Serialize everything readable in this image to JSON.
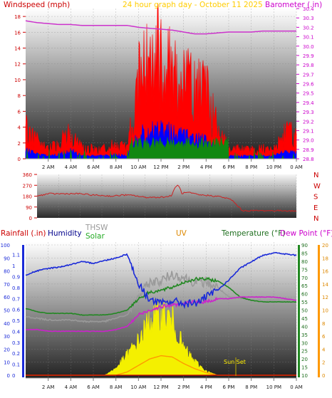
{
  "header": {
    "title": "24 hour graph day - October 11 2025",
    "left_axis_label": "Windspeed (mph)",
    "right_axis_label": "Barometer (.in)"
  },
  "colors": {
    "wind": "#ff0000",
    "wind_avg": "#0000ff",
    "wind_green": "#118811",
    "barometer": "#cc33cc",
    "direction": "#cc2222",
    "rain": "#0000ff",
    "humidity": "#1a2ad8",
    "thsw": "#9a9a9a",
    "solar": "#f4f000",
    "uv": "#ff9900",
    "temperature": "#228822",
    "dewpoint": "#cc22cc",
    "title": "#ffcc00"
  },
  "time_labels": [
    "2 AM",
    "4 AM",
    "6 AM",
    "8 AM",
    "10 AM",
    "12 PM",
    "2 PM",
    "4 PM",
    "6 PM",
    "8 PM",
    "10 PM",
    "0 AM"
  ],
  "direction_panel": {
    "ticks": [
      "360",
      "270",
      "180",
      "90",
      "0"
    ],
    "compass": [
      "N",
      "W",
      "S",
      "E",
      "N"
    ]
  },
  "bottom_panel": {
    "labels": {
      "rainfall": "Rainfall (.in)",
      "humidity": "Humidity",
      "thsw": "THSW",
      "solar": "Solar",
      "uv": "UV",
      "temperature": "Temperature (°F)",
      "dewpoint": "Dew Point (°F)",
      "sunset": "Sun Set"
    },
    "humidity_ticks": [
      "100",
      "90",
      "80",
      "70",
      "60",
      "50",
      "40",
      "30",
      "20",
      "10",
      "0"
    ],
    "rain_ticks": [
      "1.1",
      "1",
      "0.9",
      "0.8",
      "0.7",
      "0.6",
      "0.5",
      "0.4",
      "0.3",
      "0.2",
      "0.1",
      "0"
    ],
    "temp_ticks": [
      "90",
      "85",
      "80",
      "75",
      "70",
      "65",
      "60",
      "55",
      "50",
      "45",
      "40",
      "35",
      "30",
      "25",
      "20",
      "15",
      "10"
    ],
    "uv_ticks": [
      "20",
      "18",
      "16",
      "14",
      "12",
      "10",
      "8",
      "6",
      "4",
      "2",
      "0"
    ]
  },
  "chart_data": [
    {
      "type": "line",
      "x": [
        0,
        1,
        2,
        3,
        4,
        5,
        6,
        7,
        8,
        9,
        10,
        11,
        12,
        13,
        14,
        15,
        16,
        17,
        18,
        19,
        20,
        21,
        22,
        23,
        24
      ],
      "series": [
        {
          "name": "Windspeed (mph)",
          "values": [
            3,
            2,
            1,
            1.5,
            3,
            1,
            1,
            1,
            1.5,
            1,
            8,
            10,
            11,
            10,
            8,
            7,
            7,
            3,
            1,
            1,
            1,
            1,
            1,
            3,
            2
          ]
        },
        {
          "name": "Barometer (.in)",
          "values": [
            30.27,
            30.25,
            30.24,
            30.23,
            30.23,
            30.22,
            30.22,
            30.22,
            30.22,
            30.22,
            30.2,
            30.19,
            30.18,
            30.17,
            30.15,
            30.13,
            30.13,
            30.14,
            30.15,
            30.15,
            30.15,
            30.16,
            30.16,
            30.16,
            30.16
          ]
        }
      ],
      "title": "24 hour graph day - October 11 2025",
      "ylabel": "Windspeed (mph)",
      "y2label": "Barometer (.in)",
      "ylim": [
        0,
        19
      ],
      "y2lim": [
        28.8,
        30.4
      ]
    },
    {
      "type": "line",
      "x": [
        0,
        1,
        2,
        3,
        4,
        5,
        6,
        7,
        8,
        9,
        10,
        11,
        12,
        13,
        14,
        15,
        16,
        17,
        18,
        19,
        20,
        21,
        22,
        23,
        24
      ],
      "series": [
        {
          "name": "Wind Direction",
          "values": [
            180,
            200,
            200,
            200,
            200,
            190,
            185,
            180,
            190,
            185,
            170,
            170,
            175,
            200,
            210,
            190,
            185,
            175,
            150,
            60,
            60,
            60,
            60,
            60,
            55
          ]
        }
      ],
      "ylim": [
        0,
        360
      ]
    },
    {
      "type": "line",
      "x": [
        0,
        1,
        2,
        3,
        4,
        5,
        6,
        7,
        8,
        9,
        10,
        11,
        12,
        13,
        14,
        15,
        16,
        17,
        18,
        19,
        20,
        21,
        22,
        23,
        24
      ],
      "series": [
        {
          "name": "Humidity",
          "values": [
            77,
            80,
            82,
            83,
            85,
            87,
            86,
            88,
            90,
            93,
            70,
            58,
            55,
            57,
            55,
            55,
            60,
            65,
            73,
            82,
            87,
            92,
            94,
            93,
            92
          ]
        },
        {
          "name": "Temperature (°F)",
          "values": [
            51,
            49,
            48,
            48,
            48,
            47,
            47,
            47,
            48,
            50,
            57,
            61,
            62,
            64,
            67,
            69,
            69,
            68,
            64,
            58,
            56,
            55,
            55,
            55,
            55
          ]
        },
        {
          "name": "THSW",
          "values": [
            46,
            45,
            44,
            44,
            44,
            43,
            43,
            43,
            45,
            47,
            58,
            67,
            68,
            72,
            70,
            67,
            67,
            64,
            58,
            57,
            56,
            56,
            56,
            56,
            56
          ]
        },
        {
          "name": "Dew Point (°F)",
          "values": [
            38,
            38,
            37,
            37,
            37,
            37,
            37,
            37,
            38,
            40,
            47,
            50,
            52,
            53,
            54,
            55,
            55,
            57,
            57,
            58,
            58,
            58,
            58,
            57,
            56
          ]
        },
        {
          "name": "Solar",
          "values": [
            0,
            0,
            0,
            0,
            0,
            0,
            0,
            0,
            5,
            15,
            25,
            40,
            45,
            40,
            20,
            10,
            3,
            0,
            0,
            0,
            0,
            0,
            0,
            0,
            0
          ]
        },
        {
          "name": "UV",
          "values": [
            0,
            0,
            0,
            0,
            0,
            0,
            0,
            0,
            0,
            0.5,
            1.5,
            2.5,
            3,
            2.8,
            1.8,
            1,
            0.4,
            0,
            0,
            0,
            0,
            0,
            0,
            0,
            0
          ]
        },
        {
          "name": "Rainfall (.in)",
          "values": [
            0,
            0,
            0,
            0,
            0,
            0,
            0,
            0,
            0,
            0,
            0,
            0,
            0,
            0,
            0,
            0,
            0,
            0,
            0,
            0,
            0,
            0,
            0,
            0,
            0
          ]
        }
      ],
      "ylabel": "Humidity",
      "ylim": [
        0,
        100
      ],
      "y2lim": [
        10,
        90
      ]
    }
  ]
}
